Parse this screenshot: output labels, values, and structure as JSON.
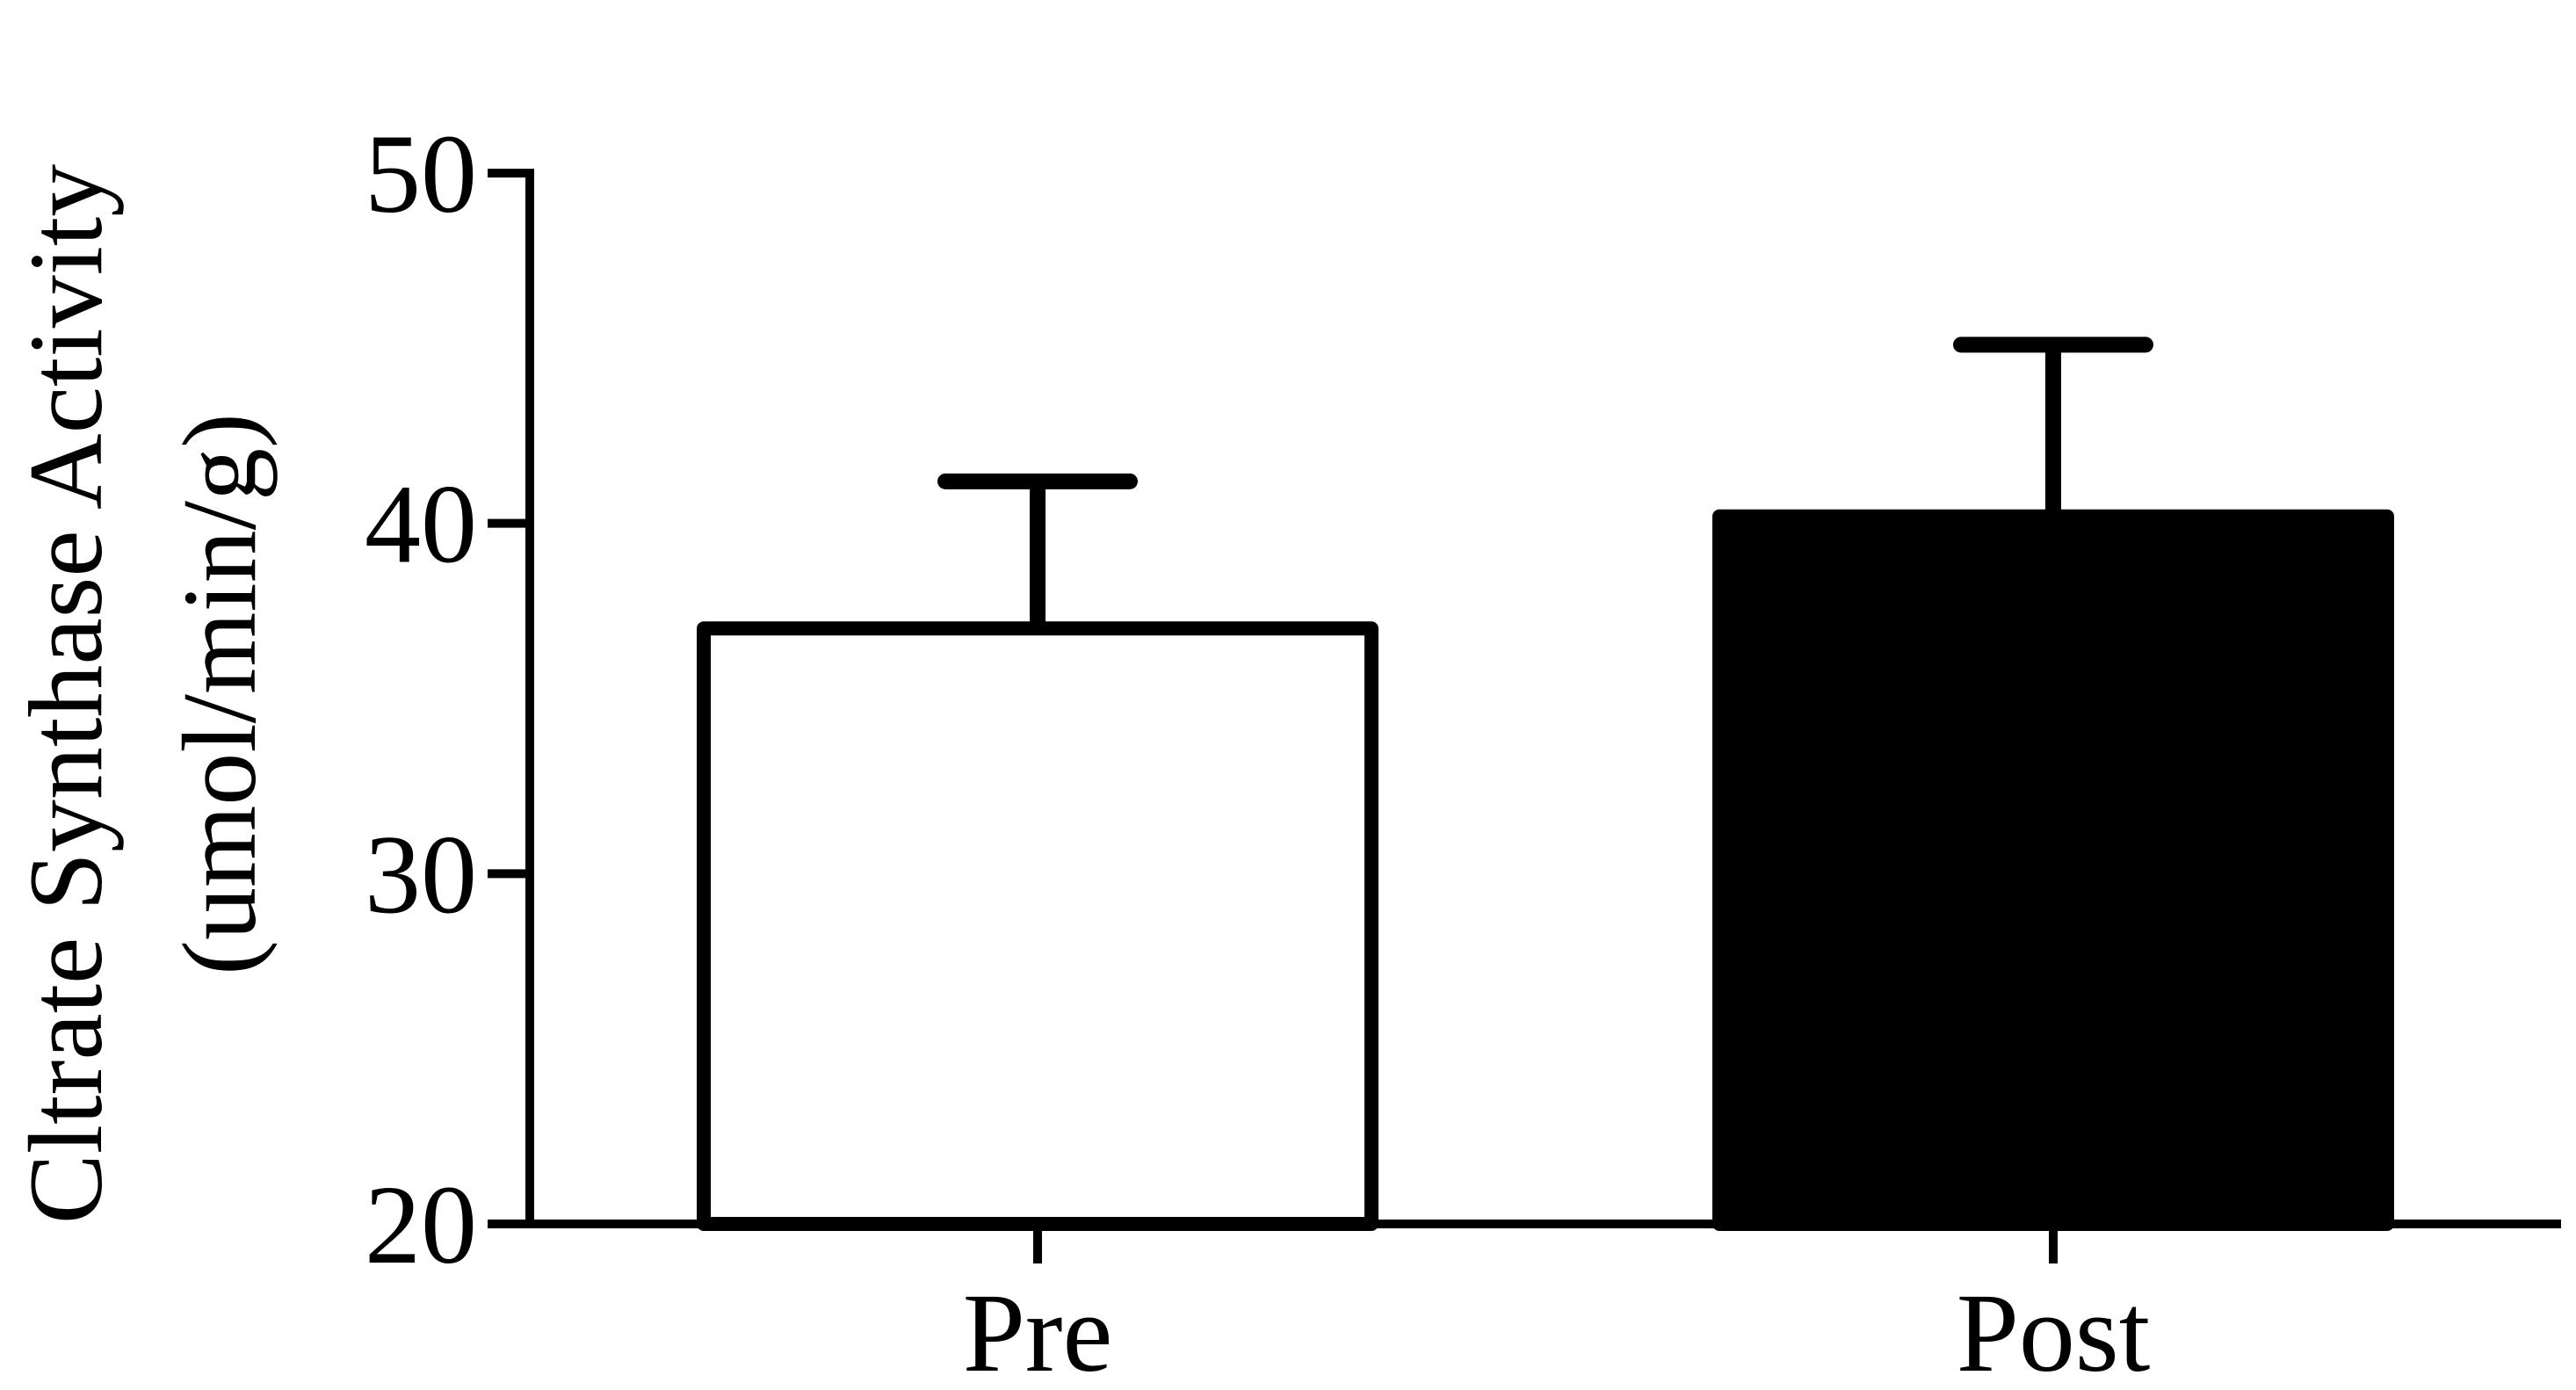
{
  "chart_data": {
    "type": "bar",
    "categories": [
      "Pre",
      "Post"
    ],
    "values": [
      37.0,
      40.2
    ],
    "error_plus": [
      4.2,
      4.9
    ],
    "ylabel_line1": "Cltrate Synthase Activity",
    "ylabel_line2": "(umol/min/g)",
    "xlabel": "",
    "ylim": [
      20,
      50
    ],
    "yticks": [
      20,
      30,
      40,
      50
    ],
    "ytick_labels": [
      "20",
      "30",
      "40",
      "50"
    ],
    "bar_fills": [
      "#ffffff",
      "#000000"
    ],
    "stroke_color": "#000000",
    "grid": false,
    "legend": "none"
  }
}
